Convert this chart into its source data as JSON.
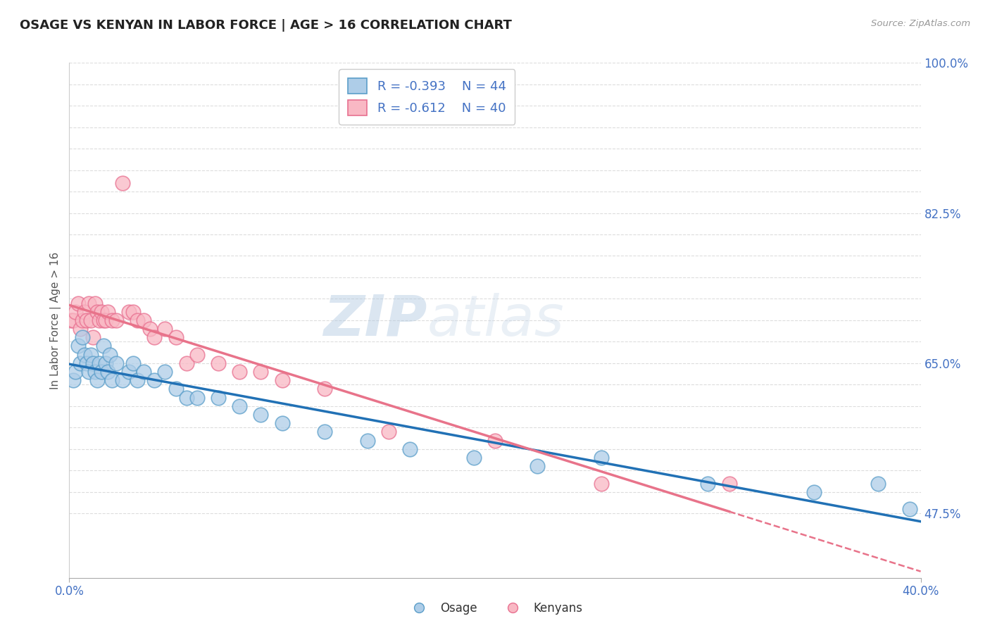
{
  "title": "OSAGE VS KENYAN IN LABOR FORCE | AGE > 16 CORRELATION CHART",
  "source_text": "Source: ZipAtlas.com",
  "ylabel": "In Labor Force | Age > 16",
  "xmin": 0.0,
  "xmax": 0.4,
  "ymin": 0.4,
  "ymax": 1.0,
  "grid_color": "#dddddd",
  "background_color": "#ffffff",
  "blue_circle_face": "#aecde8",
  "blue_circle_edge": "#5b9ec9",
  "pink_circle_face": "#f9b8c4",
  "pink_circle_edge": "#e87090",
  "blue_line_color": "#2171b5",
  "pink_line_color": "#e8738a",
  "legend_r_blue": "R = -0.393",
  "legend_n_blue": "N = 44",
  "legend_r_pink": "R = -0.612",
  "legend_n_pink": "N = 40",
  "legend_label_blue": "Osage",
  "legend_label_pink": "Kenyans",
  "watermark_zip": "ZIP",
  "watermark_atlas": "atlas",
  "right_yticks": [
    0.475,
    0.65,
    0.825,
    1.0
  ],
  "right_yticklabels": [
    "47.5%",
    "65.0%",
    "82.5%",
    "100.0%"
  ],
  "osage_x": [
    0.002,
    0.003,
    0.004,
    0.005,
    0.006,
    0.007,
    0.008,
    0.009,
    0.01,
    0.011,
    0.012,
    0.013,
    0.014,
    0.015,
    0.016,
    0.017,
    0.018,
    0.019,
    0.02,
    0.022,
    0.025,
    0.028,
    0.03,
    0.032,
    0.035,
    0.04,
    0.045,
    0.05,
    0.055,
    0.06,
    0.07,
    0.08,
    0.09,
    0.1,
    0.12,
    0.14,
    0.16,
    0.19,
    0.22,
    0.25,
    0.3,
    0.35,
    0.38,
    0.395
  ],
  "osage_y": [
    0.63,
    0.64,
    0.67,
    0.65,
    0.68,
    0.66,
    0.65,
    0.64,
    0.66,
    0.65,
    0.64,
    0.63,
    0.65,
    0.64,
    0.67,
    0.65,
    0.64,
    0.66,
    0.63,
    0.65,
    0.63,
    0.64,
    0.65,
    0.63,
    0.64,
    0.63,
    0.64,
    0.62,
    0.61,
    0.61,
    0.61,
    0.6,
    0.59,
    0.58,
    0.57,
    0.56,
    0.55,
    0.54,
    0.53,
    0.54,
    0.51,
    0.5,
    0.51,
    0.48
  ],
  "kenyan_x": [
    0.001,
    0.002,
    0.003,
    0.004,
    0.005,
    0.006,
    0.007,
    0.008,
    0.009,
    0.01,
    0.011,
    0.012,
    0.013,
    0.014,
    0.015,
    0.016,
    0.017,
    0.018,
    0.02,
    0.022,
    0.025,
    0.028,
    0.03,
    0.032,
    0.035,
    0.038,
    0.04,
    0.045,
    0.05,
    0.055,
    0.06,
    0.07,
    0.08,
    0.09,
    0.1,
    0.12,
    0.15,
    0.2,
    0.25,
    0.31
  ],
  "kenyan_y": [
    0.7,
    0.7,
    0.71,
    0.72,
    0.69,
    0.7,
    0.71,
    0.7,
    0.72,
    0.7,
    0.68,
    0.72,
    0.71,
    0.7,
    0.71,
    0.7,
    0.7,
    0.71,
    0.7,
    0.7,
    0.86,
    0.71,
    0.71,
    0.7,
    0.7,
    0.69,
    0.68,
    0.69,
    0.68,
    0.65,
    0.66,
    0.65,
    0.64,
    0.64,
    0.63,
    0.62,
    0.57,
    0.56,
    0.51,
    0.51
  ]
}
